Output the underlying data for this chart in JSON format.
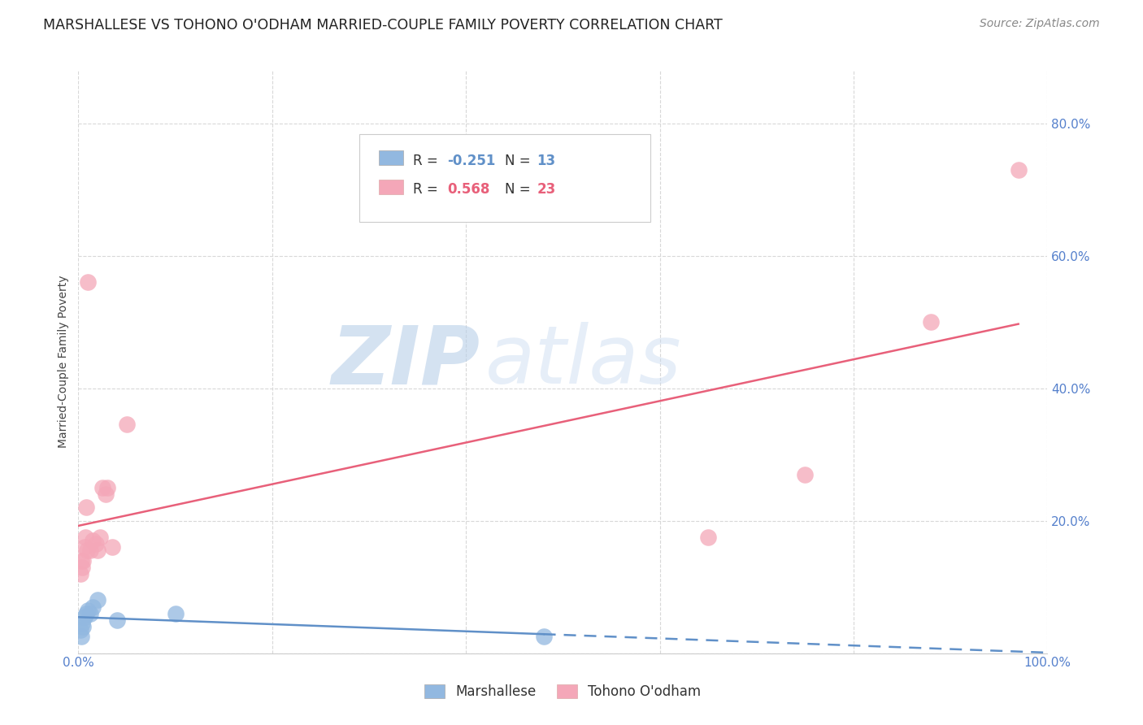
{
  "title": "MARSHALLESE VS TOHONO O'ODHAM MARRIED-COUPLE FAMILY POVERTY CORRELATION CHART",
  "source": "Source: ZipAtlas.com",
  "ylabel": "Married-Couple Family Poverty",
  "xlim": [
    0.0,
    1.0
  ],
  "ylim": [
    0.0,
    0.88
  ],
  "xticks": [
    0.0,
    0.2,
    0.4,
    0.6,
    0.8,
    1.0
  ],
  "xtick_labels": [
    "0.0%",
    "",
    "",
    "",
    "",
    "100.0%"
  ],
  "yticks": [
    0.0,
    0.2,
    0.4,
    0.6,
    0.8
  ],
  "ytick_labels": [
    "",
    "20.0%",
    "40.0%",
    "60.0%",
    "80.0%"
  ],
  "marshallese_color": "#92b8e0",
  "tohono_color": "#f4a7b8",
  "marshallese_line_color": "#6090c8",
  "tohono_line_color": "#e8607a",
  "marshallese_R": -0.251,
  "marshallese_N": 13,
  "tohono_R": 0.568,
  "tohono_N": 23,
  "marshallese_x": [
    0.002,
    0.003,
    0.004,
    0.005,
    0.006,
    0.008,
    0.01,
    0.012,
    0.015,
    0.02,
    0.04,
    0.1,
    0.48
  ],
  "marshallese_y": [
    0.035,
    0.025,
    0.045,
    0.04,
    0.055,
    0.06,
    0.065,
    0.06,
    0.07,
    0.08,
    0.05,
    0.06,
    0.025
  ],
  "tohono_x": [
    0.002,
    0.003,
    0.004,
    0.005,
    0.006,
    0.007,
    0.008,
    0.009,
    0.01,
    0.012,
    0.015,
    0.018,
    0.02,
    0.022,
    0.025,
    0.028,
    0.03,
    0.035,
    0.05,
    0.65,
    0.75,
    0.88,
    0.97
  ],
  "tohono_y": [
    0.12,
    0.14,
    0.13,
    0.14,
    0.16,
    0.175,
    0.22,
    0.155,
    0.56,
    0.155,
    0.17,
    0.165,
    0.155,
    0.175,
    0.25,
    0.24,
    0.25,
    0.16,
    0.345,
    0.175,
    0.27,
    0.5,
    0.73
  ],
  "tohono_line_start_x": 0.0,
  "tohono_line_start_y": 0.19,
  "tohono_line_end_x": 1.0,
  "tohono_line_end_y": 0.5,
  "marsh_line_start_x": 0.0,
  "marsh_line_start_y": 0.055,
  "marsh_line_end_x": 0.48,
  "marsh_line_end_y": 0.03,
  "marsh_line_dash_end_x": 1.0,
  "marsh_line_dash_end_y": 0.0,
  "background_color": "#ffffff",
  "grid_color": "#d8d8d8",
  "title_fontsize": 12.5,
  "axis_label_fontsize": 10,
  "tick_fontsize": 11,
  "right_tick_color": "#5580cc",
  "legend_border_color": "#cccccc"
}
